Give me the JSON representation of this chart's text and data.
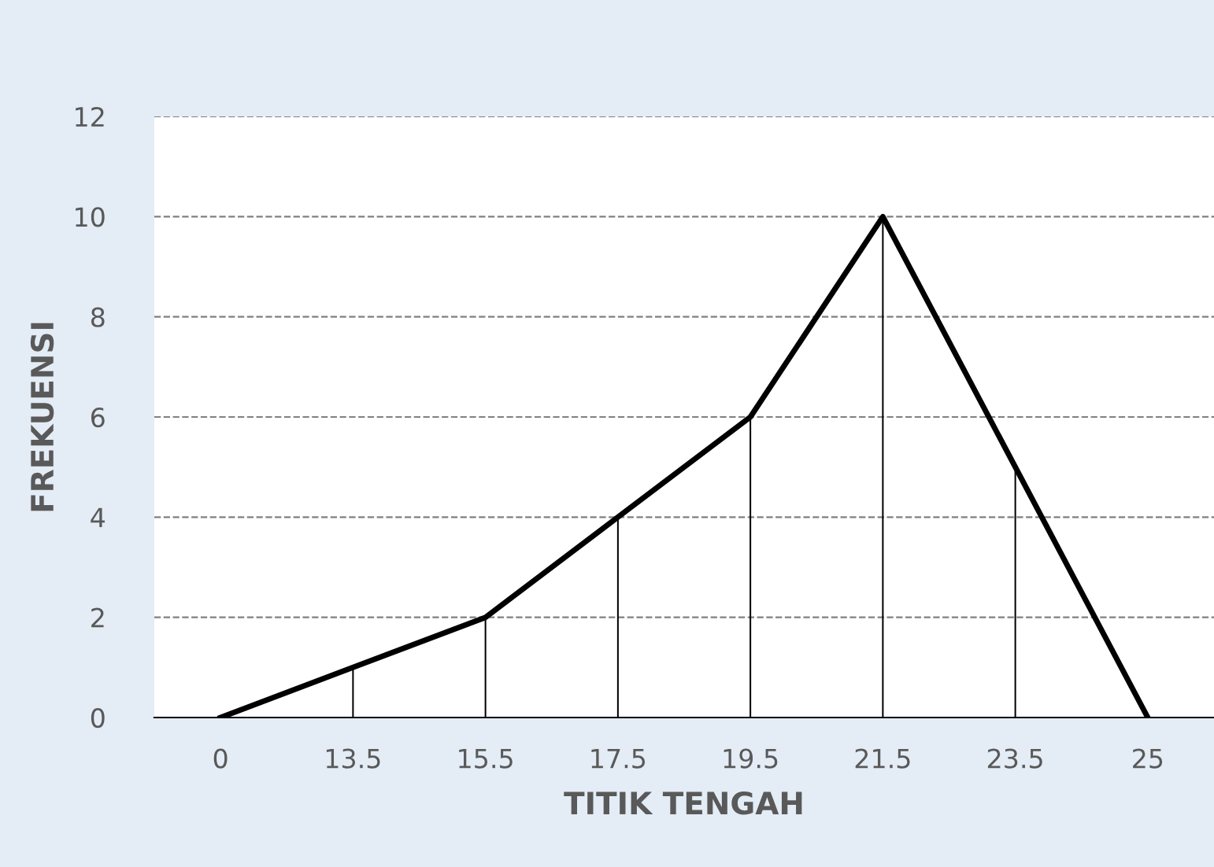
{
  "chart_data": {
    "type": "line",
    "xlabel": "TITIK TENGAH",
    "ylabel": "FREKUENSI",
    "categories": [
      "0",
      "13.5",
      "15.5",
      "17.5",
      "19.5",
      "21.5",
      "23.5",
      "25"
    ],
    "series": [
      {
        "type": "bar",
        "color": "#000000",
        "values": [
          0,
          1,
          2,
          4,
          6,
          10,
          5,
          0
        ]
      },
      {
        "color": "#000000",
        "values": [
          0,
          1,
          2,
          4,
          6,
          10,
          5,
          0
        ]
      }
    ],
    "ylim": [
      0,
      12
    ],
    "yticks": [
      0,
      2,
      4,
      6,
      8,
      10,
      12
    ],
    "grid": "y",
    "marker": "none",
    "line_style": "solid"
  }
}
